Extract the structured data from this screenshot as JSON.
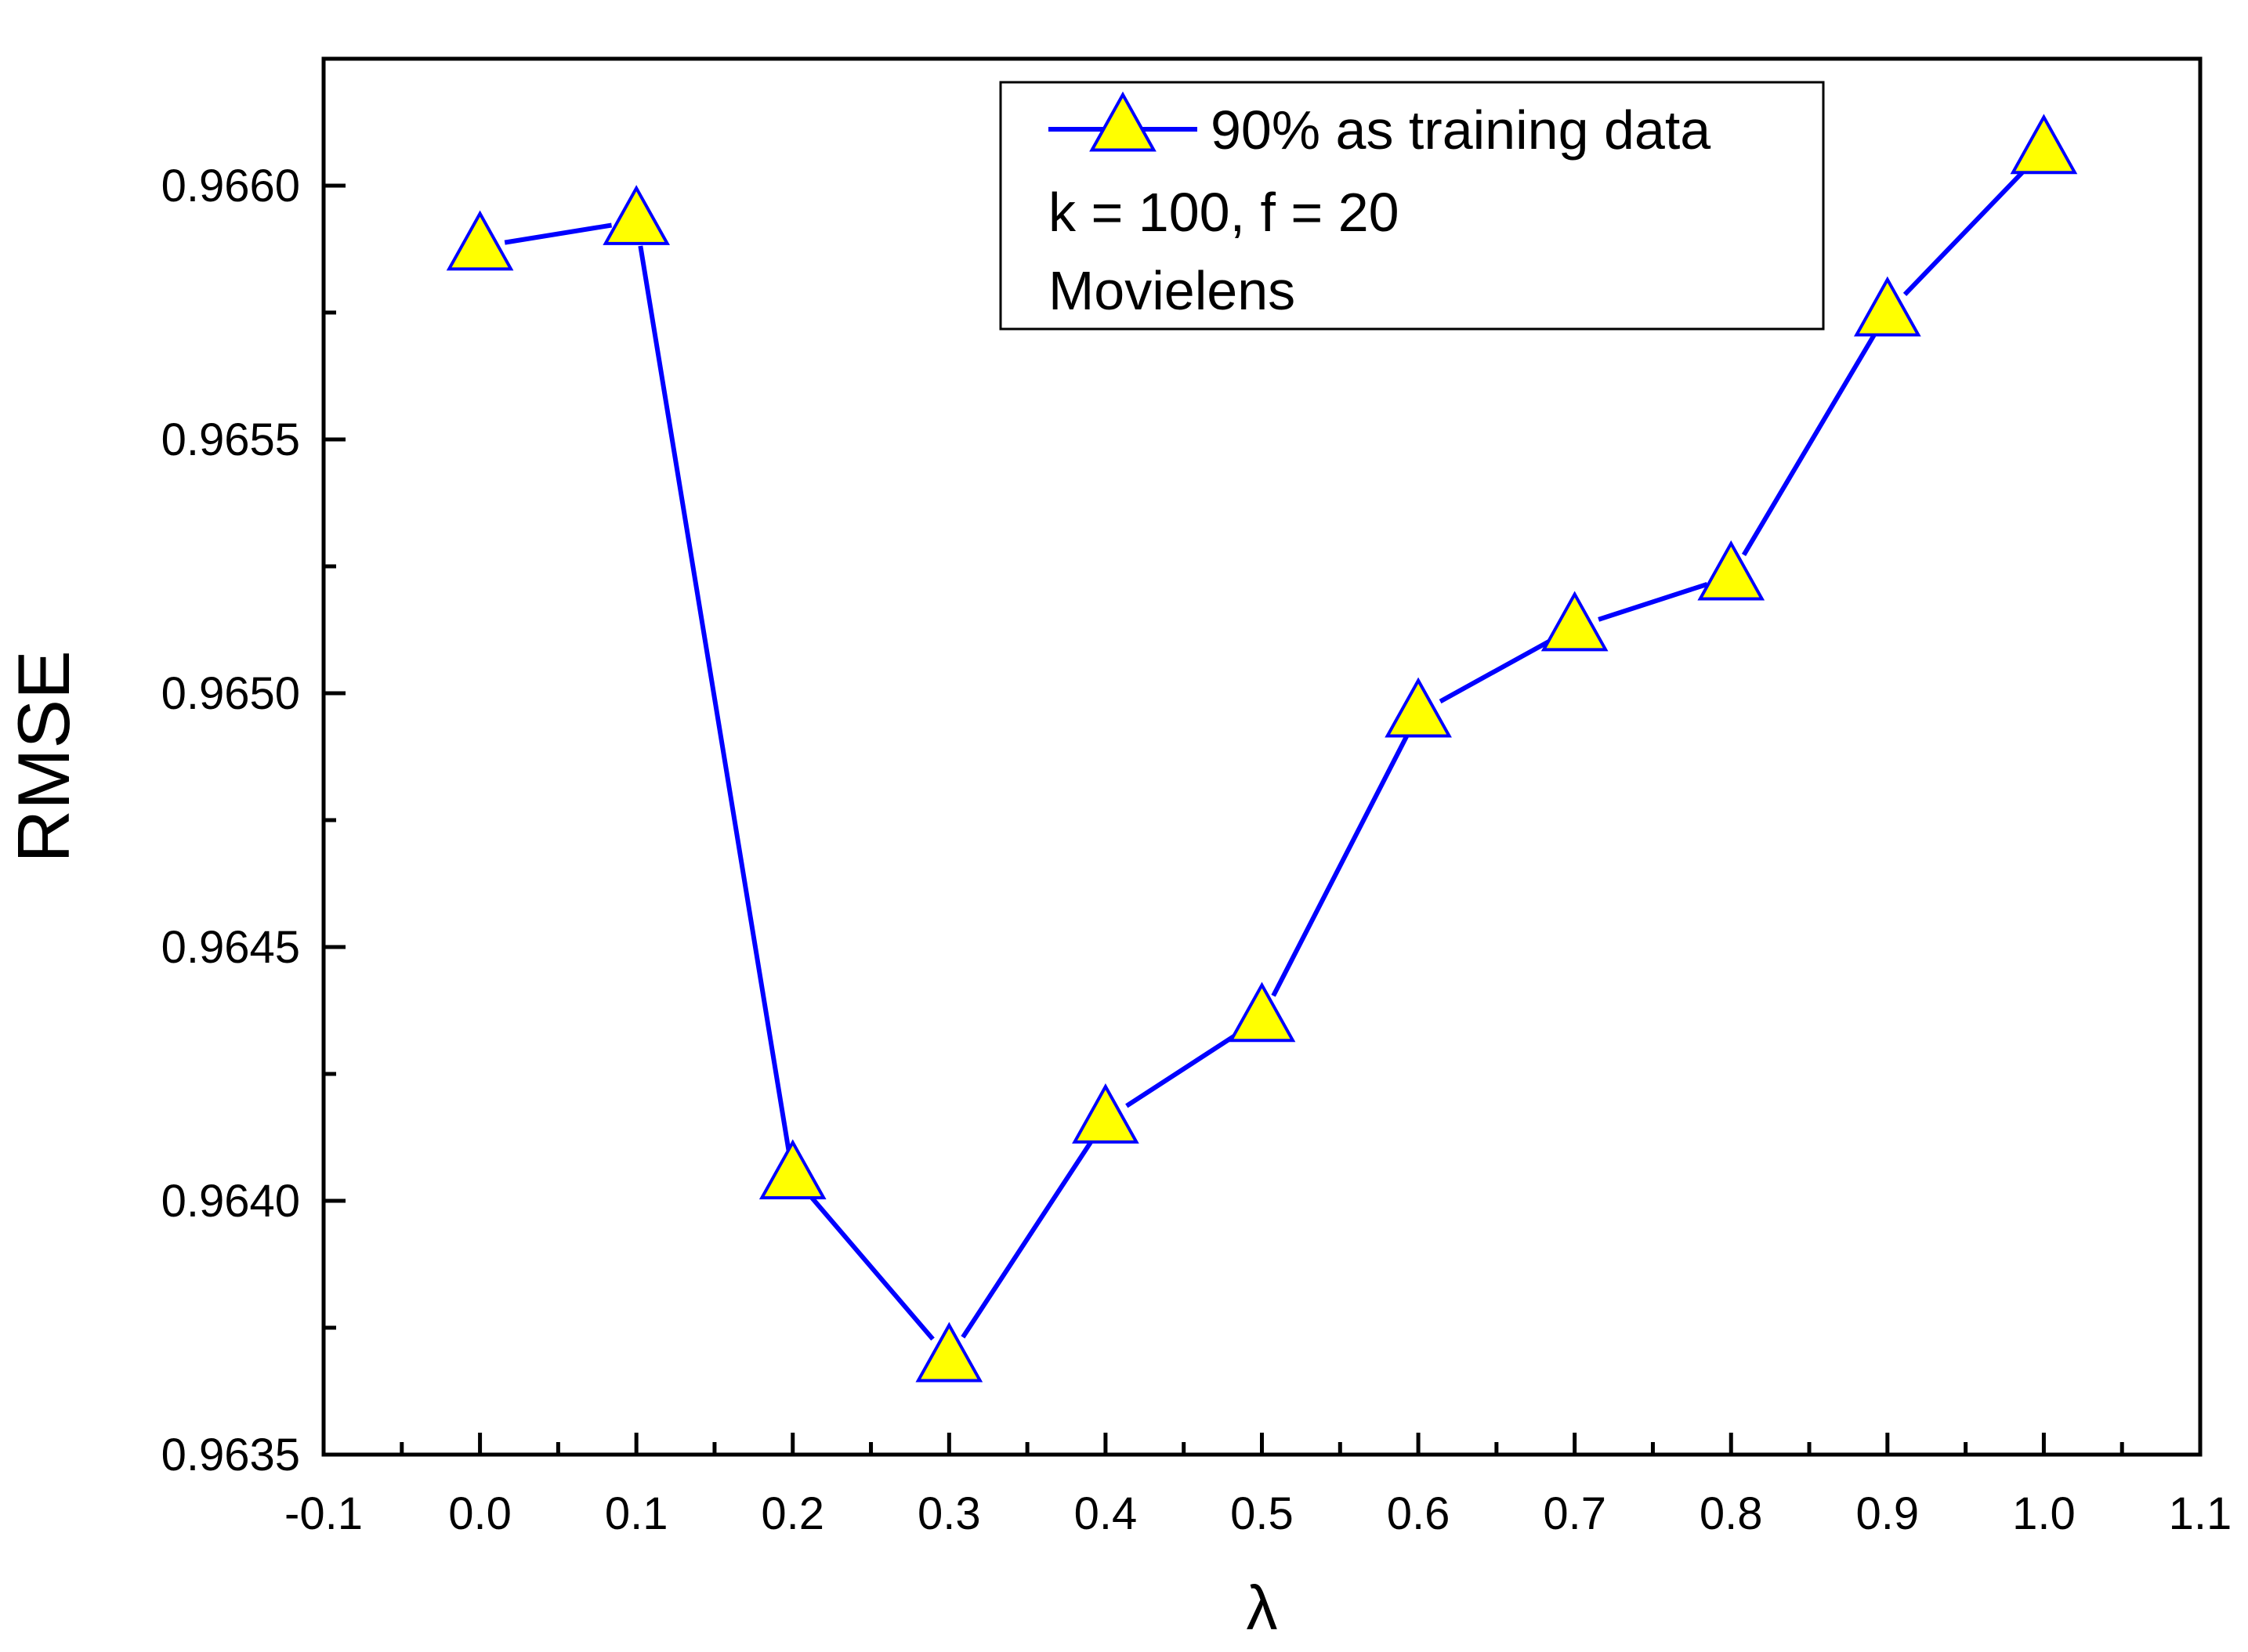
{
  "chart_data": {
    "type": "line",
    "xlabel": "λ",
    "ylabel": "RMSE",
    "xlim": [
      -0.1,
      1.1
    ],
    "ylim": [
      0.9635,
      0.96625
    ],
    "x_ticks": [
      "-0.1",
      "0.0",
      "0.1",
      "0.2",
      "0.3",
      "0.4",
      "0.5",
      "0.6",
      "0.7",
      "0.8",
      "0.9",
      "1.0",
      "1.1"
    ],
    "y_ticks": [
      "0.9635",
      "0.9640",
      "0.9645",
      "0.9650",
      "0.9655",
      "0.9660"
    ],
    "grid": false,
    "legend_position": "top-right",
    "series": [
      {
        "name": "90% as training data",
        "color": "#0000ff",
        "marker": "triangle",
        "marker_fill": "#ffff00",
        "x": [
          0.0,
          0.1,
          0.2,
          0.3,
          0.4,
          0.5,
          0.6,
          0.7,
          0.8,
          0.9,
          1.0
        ],
        "y": [
          0.96588,
          0.96593,
          0.96405,
          0.96369,
          0.96416,
          0.96436,
          0.96496,
          0.96513,
          0.96523,
          0.96575,
          0.96607
        ]
      }
    ],
    "annotations": [
      "k = 100, f = 20",
      "Movielens"
    ]
  }
}
